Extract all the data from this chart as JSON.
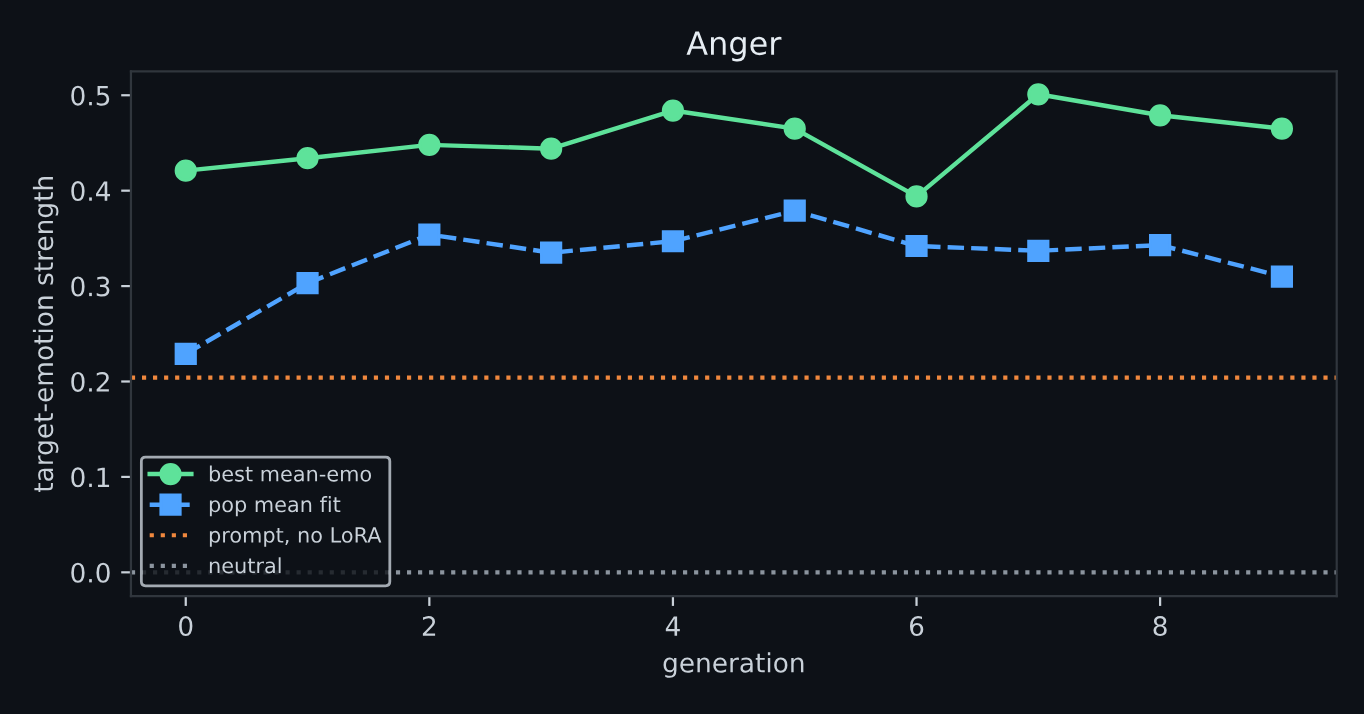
{
  "chart_data": {
    "type": "line",
    "title": "Anger",
    "xlabel": "generation",
    "ylabel": "target-emotion strength",
    "x": [
      0,
      1,
      2,
      3,
      4,
      5,
      6,
      7,
      8,
      9
    ],
    "series": [
      {
        "name": "best mean-emo",
        "color": "#5ee29a",
        "marker": "circle",
        "line_style": "solid",
        "values": [
          0.421,
          0.434,
          0.448,
          0.444,
          0.484,
          0.465,
          0.394,
          0.501,
          0.479,
          0.465
        ]
      },
      {
        "name": "pop mean fit",
        "color": "#4fa3ff",
        "marker": "square",
        "line_style": "dashed",
        "values": [
          0.229,
          0.303,
          0.354,
          0.335,
          0.347,
          0.379,
          0.342,
          0.337,
          0.343,
          0.31
        ]
      }
    ],
    "ref_lines": [
      {
        "axis": "y",
        "value": 0.204,
        "label": "prompt, no LoRA",
        "color": "#f0883e",
        "line_style": "dotted"
      },
      {
        "axis": "y",
        "value": 0,
        "label": "neutral",
        "color": "#8b949e",
        "line_style": "dotted"
      }
    ],
    "xlim": [
      -0.45,
      9.45
    ],
    "xticks": [
      0,
      2,
      4,
      6,
      8
    ],
    "ylim": [
      -0.025,
      0.525
    ],
    "yticks": [
      {
        "value": 0,
        "label": "0.0"
      },
      0.1,
      0.2,
      0.3,
      0.4,
      0.5
    ],
    "grid": false,
    "legend": "lower left"
  }
}
